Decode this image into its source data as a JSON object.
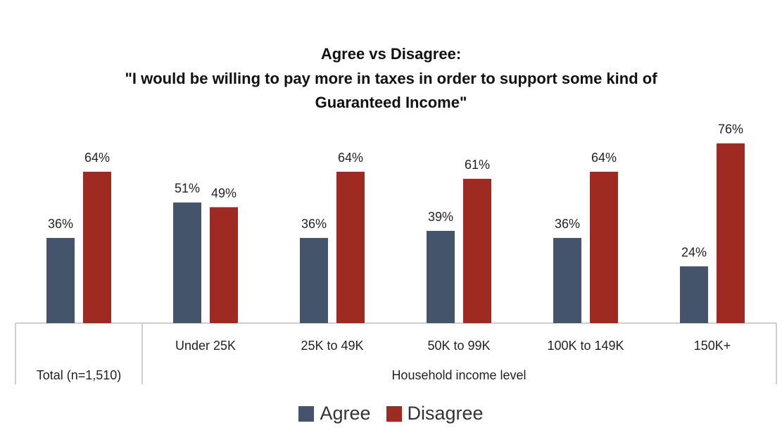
{
  "colors": {
    "agree": "#44546A",
    "disagree": "#9E2A22",
    "axis": "#BFBFBF"
  },
  "chart_data": {
    "type": "bar",
    "title": "Agree vs Disagree:",
    "subtitle_lines": [
      "\"I would be willing to pay more in taxes in order to support some kind of",
      "Guaranteed Income\""
    ],
    "categories": [
      "",
      "Under 25K",
      "25K to 49K",
      "50K to 99K",
      "100K to 149K",
      "150K+"
    ],
    "group_labels": [
      "Total (n=1,510)",
      "Household income level"
    ],
    "series": [
      {
        "name": "Agree",
        "values": [
          36,
          51,
          36,
          39,
          36,
          24
        ],
        "labels": [
          "36%",
          "51%",
          "36%",
          "39%",
          "36%",
          "24%"
        ]
      },
      {
        "name": "Disagree",
        "values": [
          64,
          49,
          64,
          61,
          64,
          76
        ],
        "labels": [
          "64%",
          "49%",
          "64%",
          "61%",
          "64%",
          "76%"
        ]
      }
    ],
    "ylim": [
      0,
      100
    ],
    "grid": false,
    "legend_position": "bottom"
  }
}
